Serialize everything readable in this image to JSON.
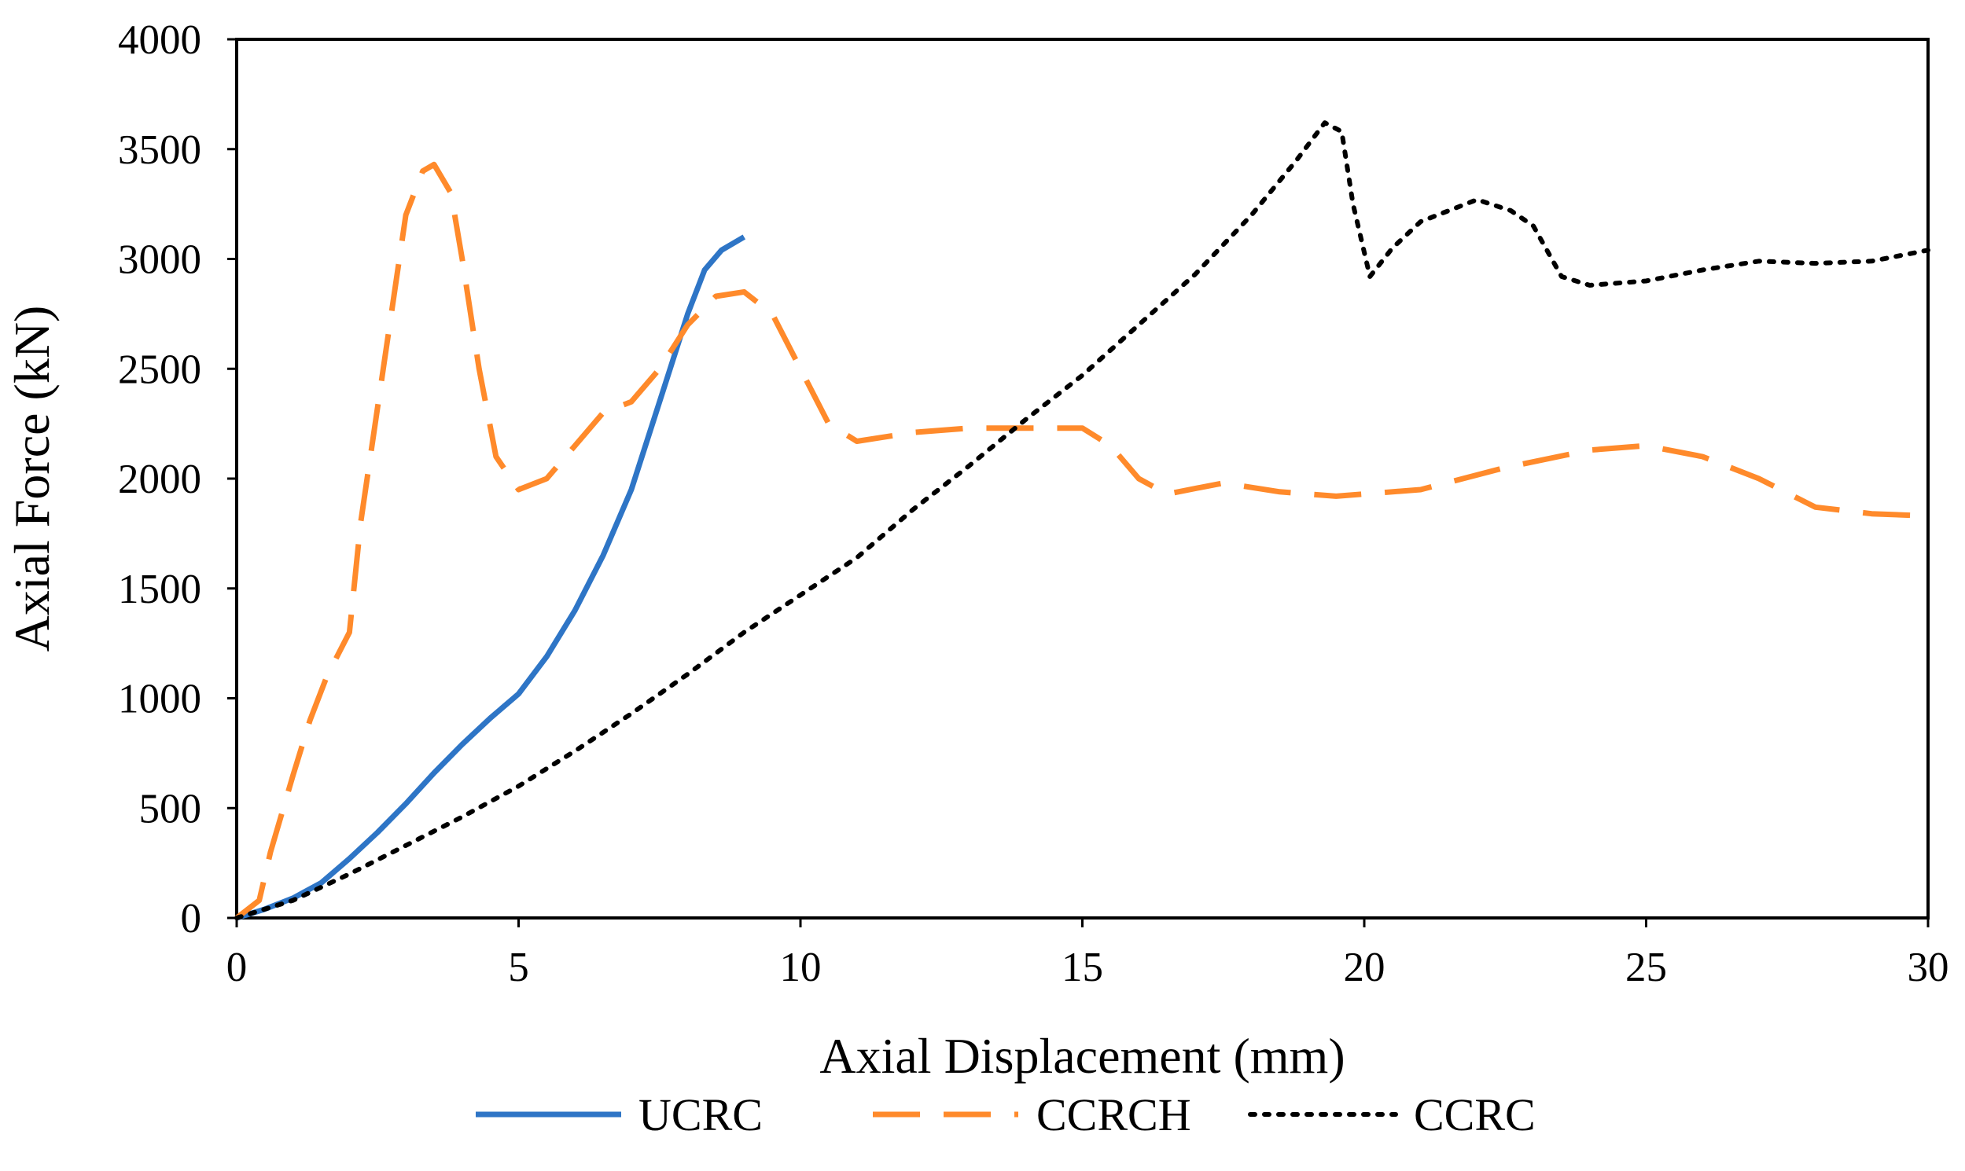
{
  "chart_data": {
    "type": "line",
    "title": "",
    "xlabel": "Axial Displacement (mm)",
    "ylabel": "Axial Force (kN)",
    "xlim": [
      0,
      30
    ],
    "ylim": [
      0,
      4000
    ],
    "xticks": [
      0,
      5,
      10,
      15,
      20,
      25,
      30
    ],
    "yticks": [
      0,
      500,
      1000,
      1500,
      2000,
      2500,
      3000,
      3500,
      4000
    ],
    "grid": false,
    "legend_position": "bottom",
    "series": [
      {
        "name": "UCRC",
        "color": "#2e75c6",
        "dash": "solid",
        "x": [
          0,
          0.5,
          1,
          1.5,
          2,
          2.5,
          3,
          3.5,
          4,
          4.5,
          5,
          5.5,
          6,
          6.5,
          7,
          7.5,
          8,
          8.3,
          8.6,
          9.0
        ],
        "y": [
          0,
          40,
          90,
          160,
          270,
          390,
          520,
          660,
          790,
          910,
          1020,
          1190,
          1400,
          1650,
          1950,
          2350,
          2750,
          2950,
          3040,
          3100
        ]
      },
      {
        "name": "CCRCH",
        "color": "#ff8a2b",
        "dash": "dashed",
        "x": [
          0,
          0.4,
          0.6,
          1,
          1.3,
          1.6,
          2,
          2.2,
          2.6,
          3,
          3.3,
          3.5,
          3.8,
          4,
          4.3,
          4.6,
          5,
          5.5,
          6,
          6.5,
          7,
          7.5,
          8,
          8.5,
          9,
          9.5,
          10,
          10.5,
          11,
          12,
          13,
          14,
          15,
          15.5,
          16,
          16.5,
          17.5,
          18.5,
          19.5,
          21,
          22.5,
          24,
          25,
          26,
          27,
          28,
          29,
          30
        ],
        "y": [
          0,
          80,
          300,
          650,
          900,
          1100,
          1300,
          1800,
          2500,
          3200,
          3400,
          3430,
          3300,
          3000,
          2500,
          2100,
          1950,
          2000,
          2150,
          2300,
          2350,
          2500,
          2700,
          2830,
          2850,
          2750,
          2500,
          2250,
          2170,
          2210,
          2230,
          2230,
          2230,
          2150,
          2000,
          1930,
          1980,
          1940,
          1920,
          1950,
          2050,
          2130,
          2150,
          2100,
          2000,
          1870,
          1840,
          1830
        ]
      },
      {
        "name": "CCRC",
        "color": "#000000",
        "dash": "dotted",
        "x": [
          0,
          1,
          2,
          3,
          4,
          5,
          6,
          7,
          8,
          9,
          10,
          11,
          12,
          13,
          14,
          15,
          16,
          17,
          18,
          18.8,
          19.3,
          19.6,
          19.8,
          20.1,
          20.5,
          21,
          22,
          22.6,
          23,
          23.5,
          24,
          25,
          26,
          27,
          28,
          29,
          30
        ],
        "y": [
          0,
          80,
          200,
          330,
          460,
          600,
          760,
          930,
          1110,
          1300,
          1470,
          1640,
          1860,
          2060,
          2270,
          2470,
          2700,
          2930,
          3200,
          3450,
          3620,
          3580,
          3250,
          2920,
          3050,
          3170,
          3270,
          3220,
          3150,
          2920,
          2880,
          2900,
          2950,
          2990,
          2980,
          2990,
          3040
        ]
      }
    ]
  }
}
